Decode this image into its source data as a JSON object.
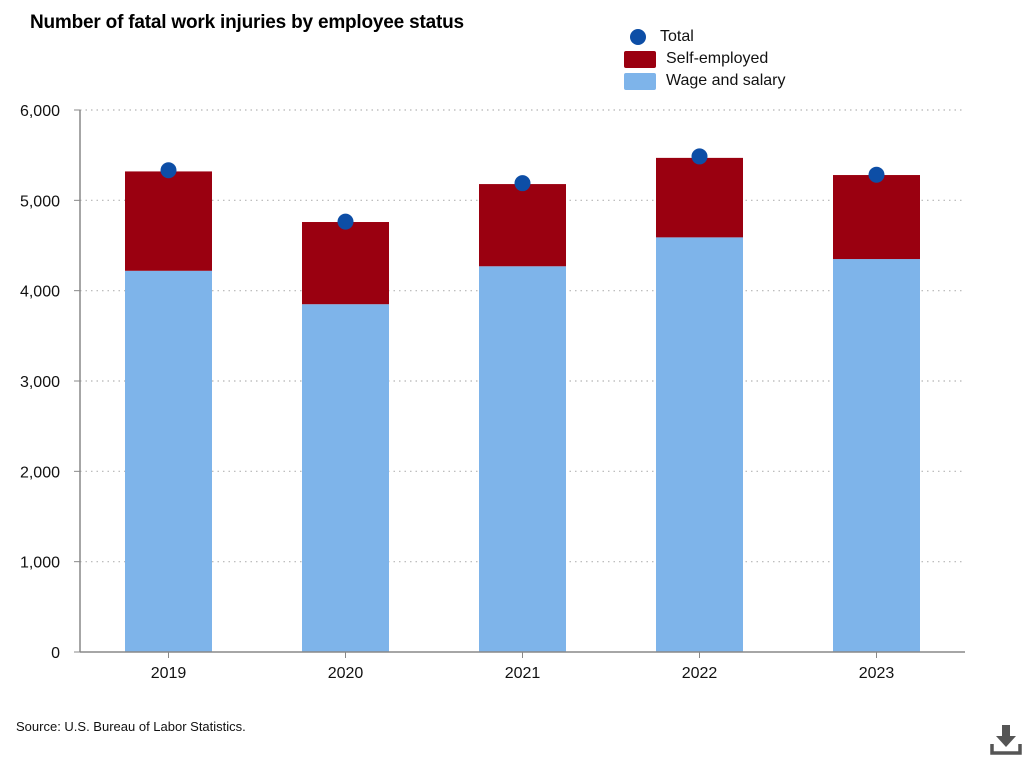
{
  "colors": {
    "total": "#0d4ea6",
    "self_employed": "#9a0010",
    "wage_and_salary": "#7eb4ea",
    "axis": "#888888",
    "grid": "#b5b5b5"
  },
  "chart_data": {
    "type": "bar",
    "stacked": true,
    "title": "Number of fatal work injuries by employee status",
    "categories": [
      "2019",
      "2020",
      "2021",
      "2022",
      "2023"
    ],
    "series": [
      {
        "name": "Wage and salary",
        "type": "bar",
        "values": [
          4220,
          3850,
          4270,
          4590,
          4350
        ]
      },
      {
        "name": "Self-employed",
        "type": "bar",
        "values": [
          1100,
          910,
          910,
          880,
          930
        ]
      },
      {
        "name": "Total",
        "type": "scatter",
        "values": [
          5333,
          4764,
          5190,
          5486,
          5283
        ]
      }
    ],
    "ylim": [
      0,
      6000
    ],
    "yticks": [
      0,
      1000,
      2000,
      3000,
      4000,
      5000,
      6000
    ],
    "ytick_labels": [
      "0",
      "1,000",
      "2,000",
      "3,000",
      "4,000",
      "5,000",
      "6,000"
    ],
    "grid": "horizontal dotted",
    "legend_placement": "top-right"
  },
  "legend": [
    {
      "label": "Total",
      "shape": "dot",
      "color": "#0d4ea6"
    },
    {
      "label": "Self-employed",
      "shape": "box",
      "color": "#9a0010"
    },
    {
      "label": "Wage and salary",
      "shape": "box",
      "color": "#7eb4ea"
    }
  ],
  "source": "Source: U.S. Bureau of Labor Statistics.",
  "download_icon": "download-icon"
}
